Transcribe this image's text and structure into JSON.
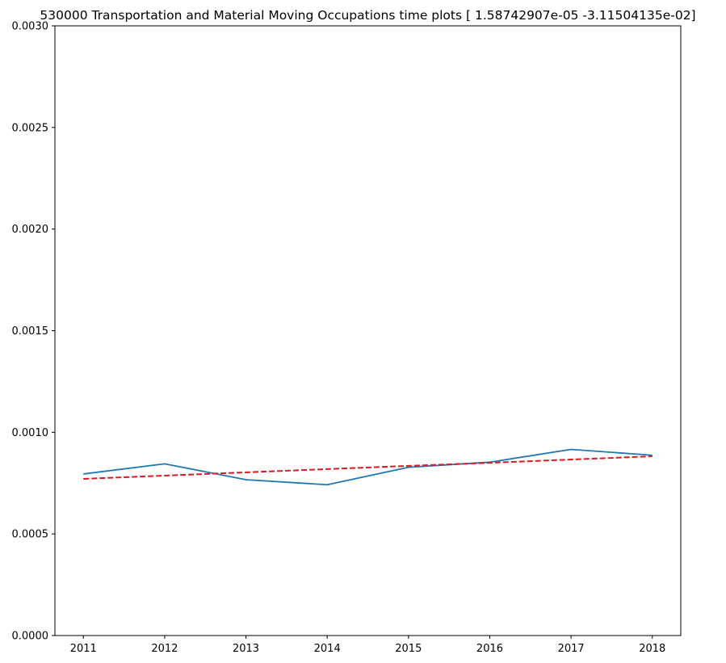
{
  "chart_data": {
    "type": "line",
    "title": "530000 Transportation and Material Moving Occupations time plots [ 1.58742907e-05 -3.11504135e-02]",
    "xlabel": "",
    "ylabel": "",
    "x": [
      2011,
      2012,
      2013,
      2014,
      2015,
      2016,
      2017,
      2018
    ],
    "x_tick_labels": [
      "2011",
      "2012",
      "2013",
      "2014",
      "2015",
      "2016",
      "2017",
      "2018"
    ],
    "y_tick_labels": [
      "0.0000",
      "0.0005",
      "0.0010",
      "0.0015",
      "0.0020",
      "0.0025",
      "0.0030"
    ],
    "y_ticks": [
      0,
      0.0005,
      0.001,
      0.0015,
      0.002,
      0.0025,
      0.003
    ],
    "ylim": [
      0,
      0.003
    ],
    "xlim": [
      2010.65,
      2018.35
    ],
    "grid": false,
    "series": [
      {
        "values": [
          0.000795,
          0.000845,
          0.000767,
          0.000742,
          0.000828,
          0.000853,
          0.000916,
          0.000887
        ],
        "color": "#1f77b4",
        "style": "solid"
      },
      {
        "values": [
          0.000771,
          0.000787,
          0.000803,
          0.000819,
          0.000835,
          0.00085,
          0.000866,
          0.000882
        ],
        "color": "#e8161b",
        "style": "dashed"
      }
    ]
  }
}
